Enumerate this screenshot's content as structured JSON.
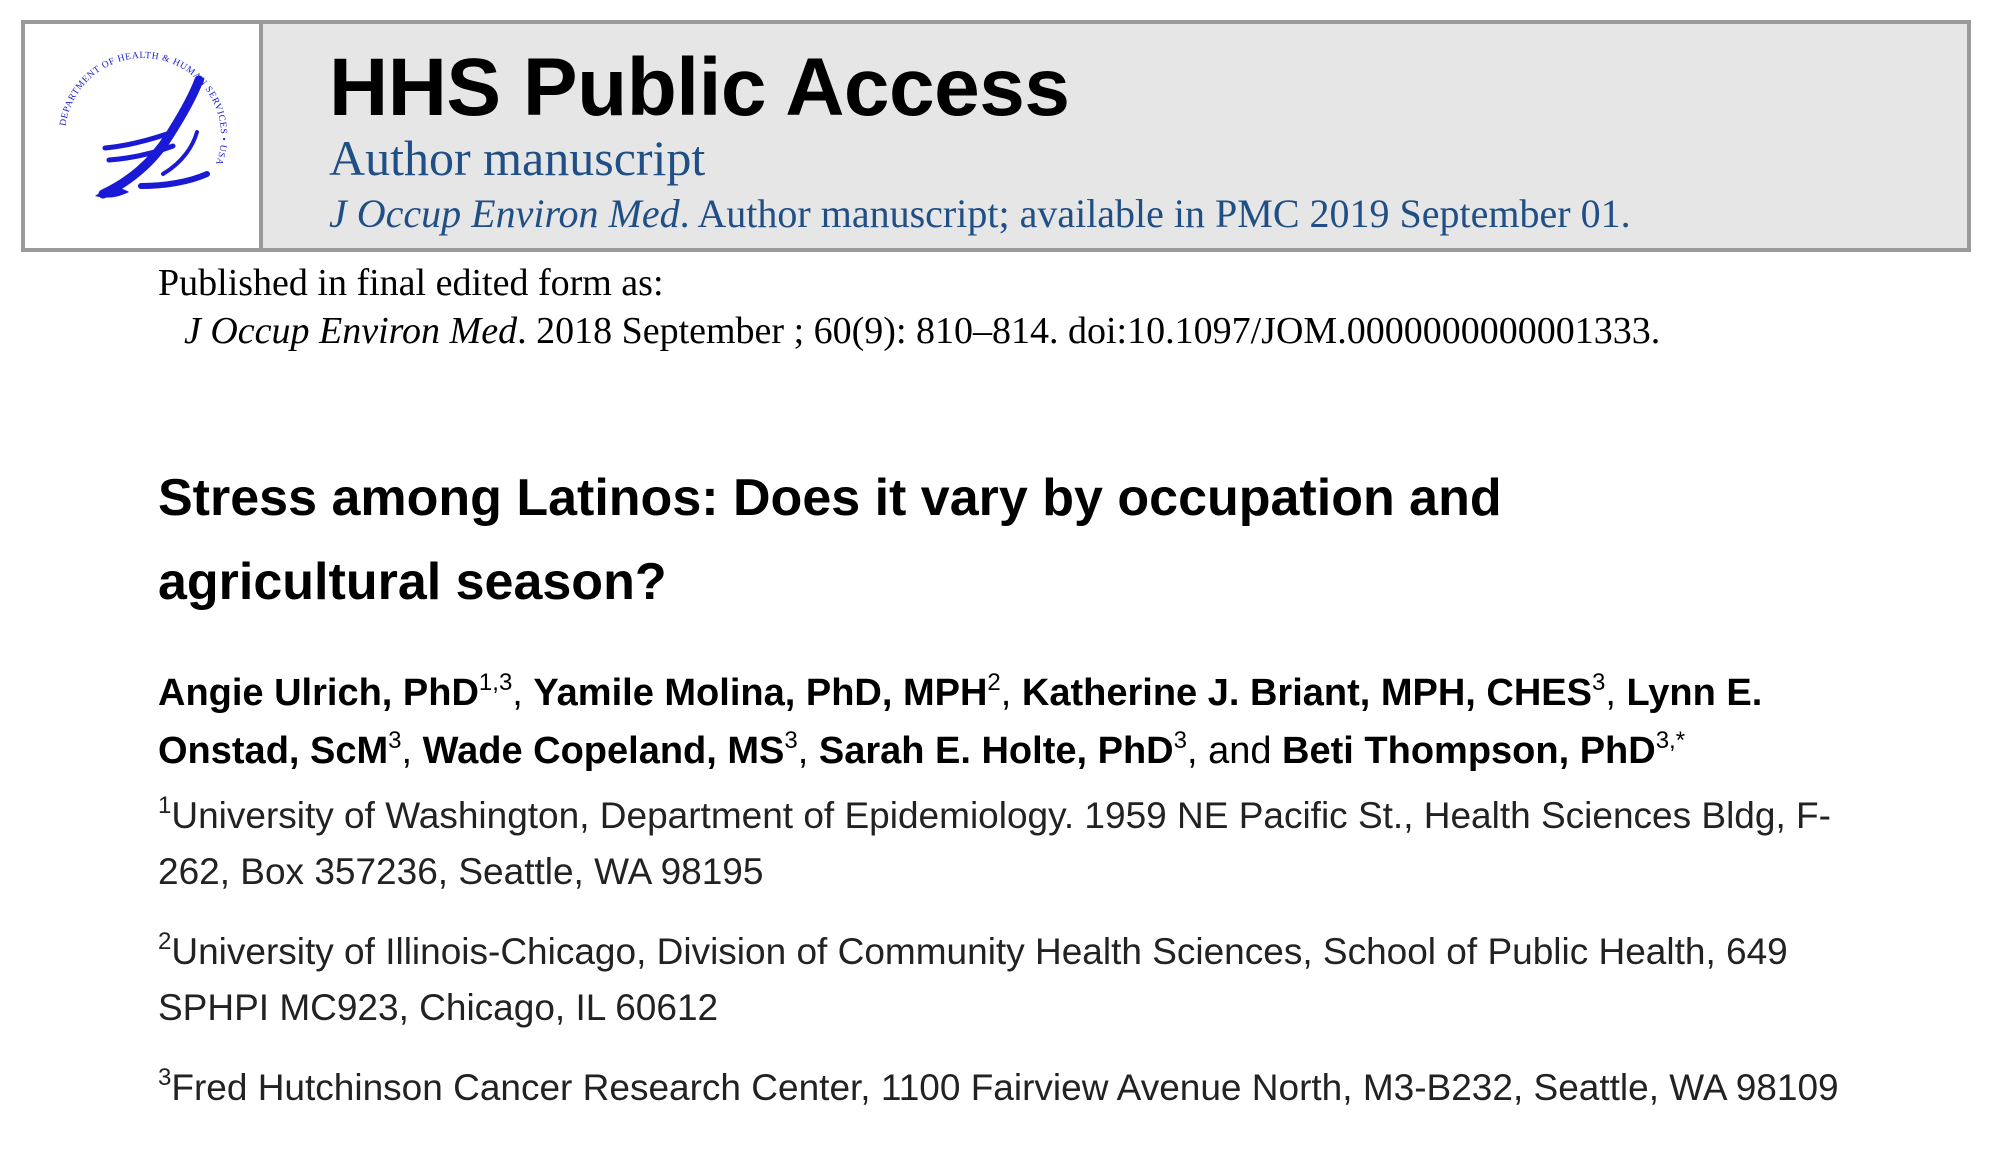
{
  "banner": {
    "title": "HHS Public Access",
    "subtitle": "Author manuscript",
    "journal_italic": "J Occup Environ Med",
    "availability": ". Author manuscript; available in PMC 2019 September 01.",
    "logo_ring_text": "DEPARTMENT OF HEALTH & HUMAN SERVICES • USA",
    "logo_color": "#1a1ad6",
    "text_color": "#1f4f86"
  },
  "publication": {
    "label": "Published in final edited form as:",
    "journal_italic": "J Occup Environ Med",
    "citation": ". 2018 September ; 60(9): 810–814. doi:10.1097/JOM.0000000000001333."
  },
  "article": {
    "title": "Stress among Latinos: Does it vary by occupation and agricultural season?"
  },
  "authors": [
    {
      "name": "Angie Ulrich, PhD",
      "sup": "1,3",
      "sep": ", "
    },
    {
      "name": "Yamile Molina, PhD, MPH",
      "sup": "2",
      "sep": ", "
    },
    {
      "name": "Katherine J. Briant, MPH, CHES",
      "sup": "3",
      "sep": ", "
    },
    {
      "name": "Lynn E. Onstad, ScM",
      "sup": "3",
      "sep": ", "
    },
    {
      "name": "Wade Copeland, MS",
      "sup": "3",
      "sep": ", "
    },
    {
      "name": "Sarah E. Holte, PhD",
      "sup": "3",
      "sep": ", and "
    },
    {
      "name": "Beti Thompson, PhD",
      "sup": "3,*",
      "sep": ""
    }
  ],
  "affiliations": [
    {
      "num": "1",
      "text": "University of Washington, Department of Epidemiology. 1959 NE Pacific St., Health Sciences Bldg, F-262, Box 357236, Seattle, WA 98195"
    },
    {
      "num": "2",
      "text": "University of Illinois-Chicago, Division of Community Health Sciences, School of Public Health, 649 SPHPI MC923, Chicago, IL 60612"
    },
    {
      "num": "3",
      "text": "Fred Hutchinson Cancer Research Center, 1100 Fairview Avenue North, M3-B232, Seattle, WA 98109"
    }
  ]
}
